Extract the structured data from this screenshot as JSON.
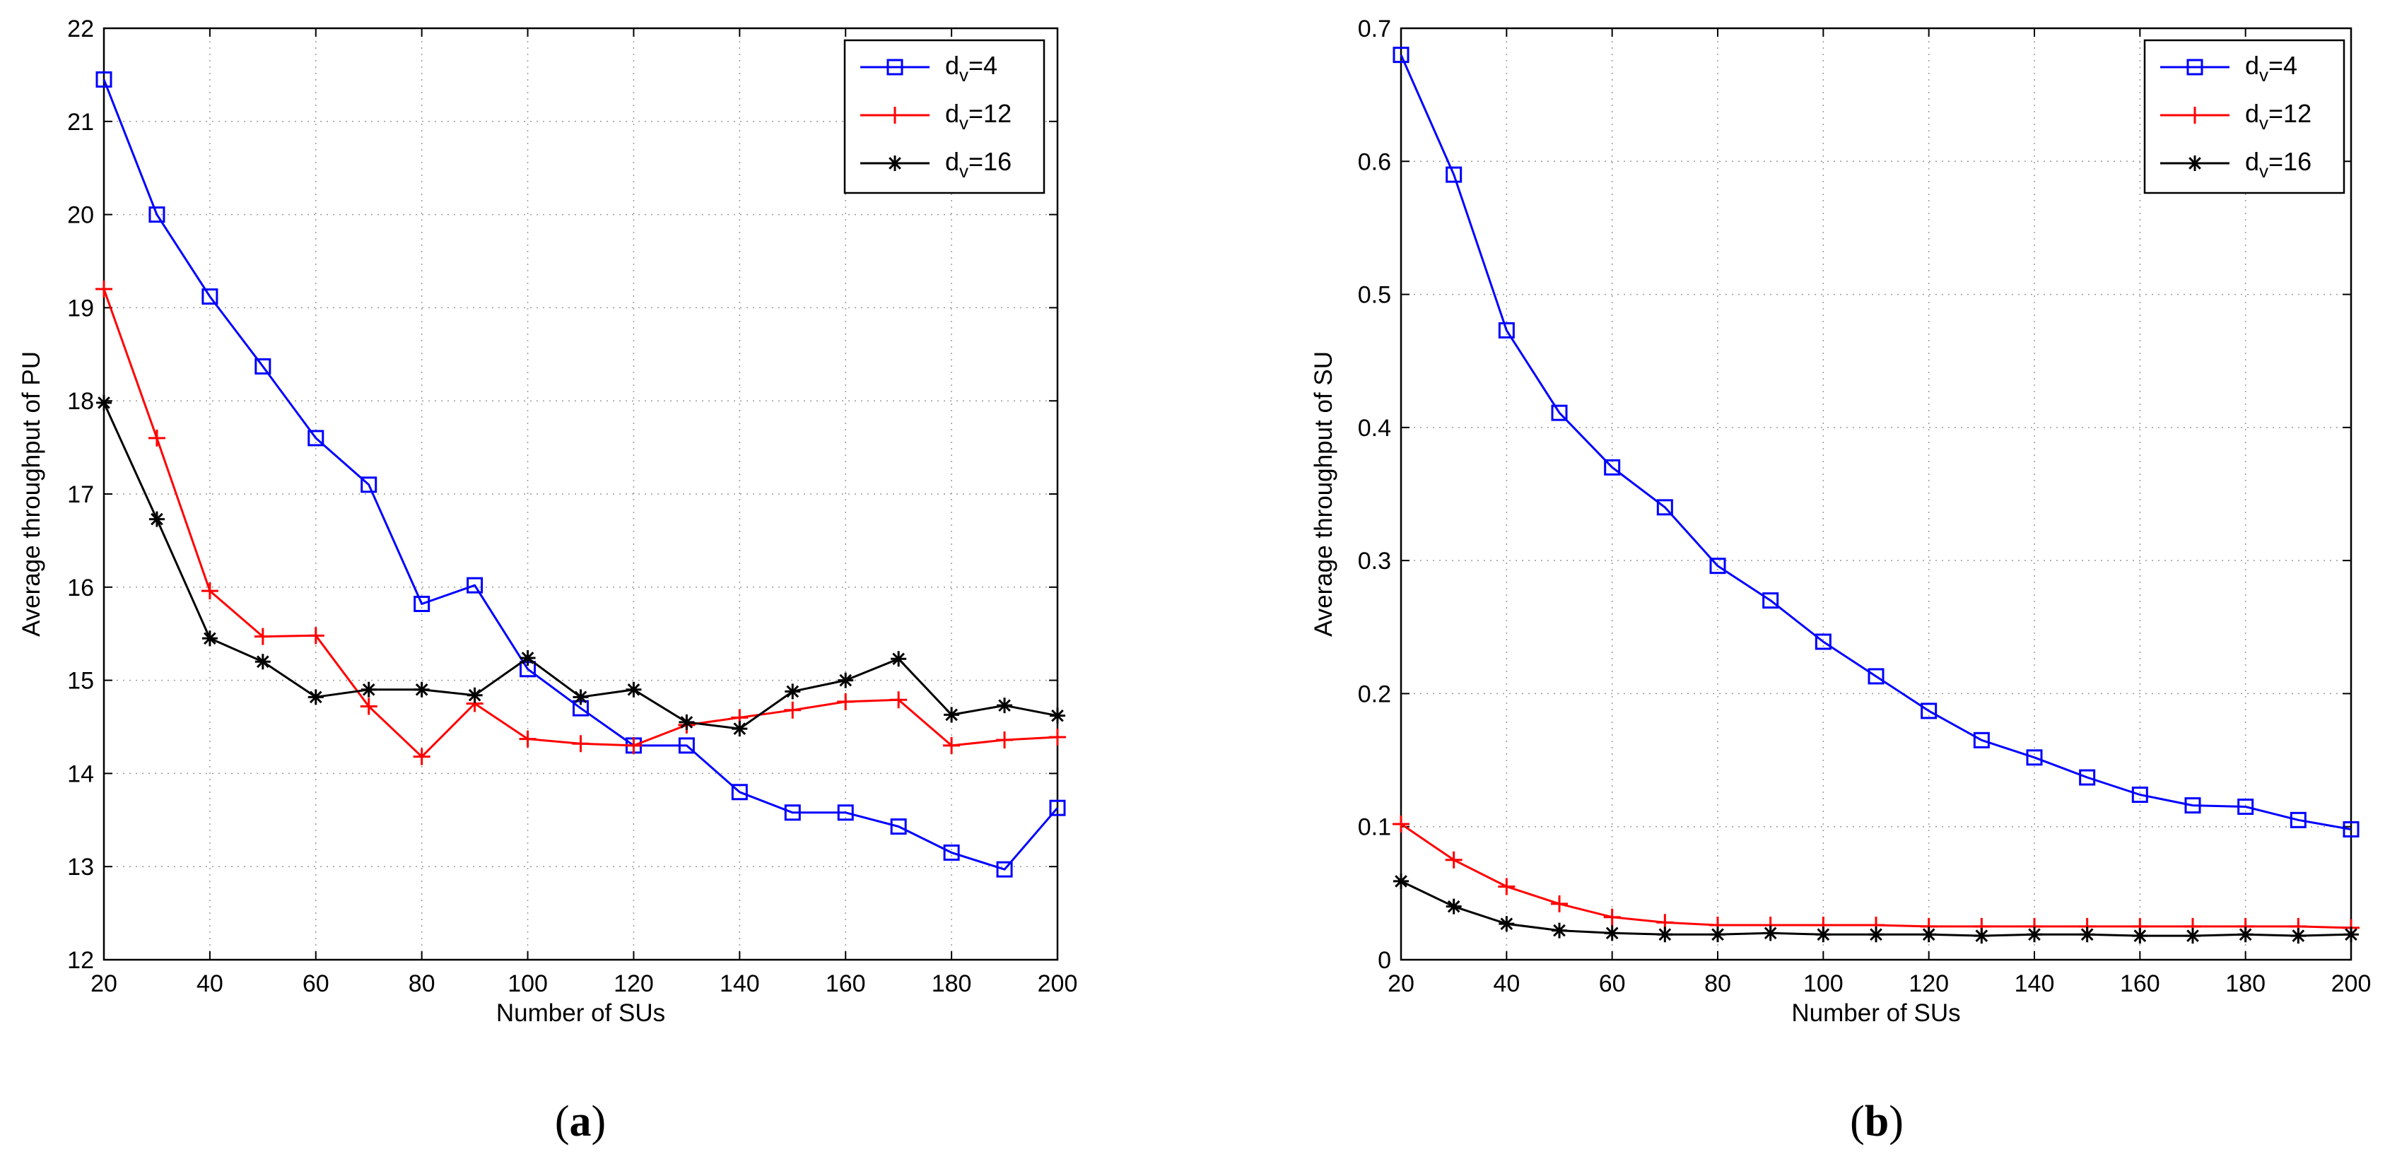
{
  "chart_data": [
    {
      "type": "line",
      "panel": "a",
      "caption": {
        "open": "(",
        "letter": "a",
        "close": ")"
      },
      "xlabel": "Number of SUs",
      "ylabel": "Average throughput of PU",
      "xlim": [
        20,
        200
      ],
      "ylim": [
        12,
        22
      ],
      "xticks": [
        20,
        40,
        60,
        80,
        100,
        120,
        140,
        160,
        180,
        200
      ],
      "yticks": [
        12,
        13,
        14,
        15,
        16,
        17,
        18,
        19,
        20,
        21,
        22
      ],
      "grid": true,
      "legend_position": "top-right",
      "x": [
        20,
        30,
        40,
        50,
        60,
        70,
        80,
        90,
        100,
        110,
        120,
        130,
        140,
        150,
        160,
        170,
        180,
        190,
        200
      ],
      "series": [
        {
          "name": "d_v=4",
          "label_base": "d",
          "label_sub": "v",
          "label_rest": "=4",
          "color": "#0000ff",
          "marker": "square",
          "values": [
            21.45,
            20.0,
            19.12,
            18.37,
            17.6,
            17.1,
            15.82,
            16.02,
            15.12,
            14.7,
            14.3,
            14.3,
            13.8,
            13.58,
            13.58,
            13.43,
            13.15,
            12.97,
            13.63
          ]
        },
        {
          "name": "d_v=12",
          "label_base": "d",
          "label_sub": "v",
          "label_rest": "=12",
          "color": "#ff0000",
          "marker": "plus",
          "values": [
            19.2,
            17.6,
            15.96,
            15.47,
            15.48,
            14.72,
            14.18,
            14.75,
            14.37,
            14.32,
            14.3,
            14.52,
            14.6,
            14.68,
            14.77,
            14.79,
            14.3,
            14.36,
            14.39
          ]
        },
        {
          "name": "d_v=16",
          "label_base": "d",
          "label_sub": "v",
          "label_rest": "=16",
          "color": "#000000",
          "marker": "star",
          "values": [
            17.98,
            16.73,
            15.45,
            15.2,
            14.82,
            14.9,
            14.9,
            14.84,
            15.24,
            14.82,
            14.9,
            14.55,
            14.48,
            14.88,
            15.0,
            15.23,
            14.63,
            14.73,
            14.62
          ]
        }
      ]
    },
    {
      "type": "line",
      "panel": "b",
      "caption": {
        "open": "(",
        "letter": "b",
        "close": ")"
      },
      "xlabel": "Number of SUs",
      "ylabel": "Average throughput of SU",
      "xlim": [
        20,
        200
      ],
      "ylim": [
        0,
        0.7
      ],
      "xticks": [
        20,
        40,
        60,
        80,
        100,
        120,
        140,
        160,
        180,
        200
      ],
      "yticks": [
        0,
        0.1,
        0.2,
        0.3,
        0.4,
        0.5,
        0.6,
        0.7
      ],
      "grid": true,
      "legend_position": "top-right",
      "x": [
        20,
        30,
        40,
        50,
        60,
        70,
        80,
        90,
        100,
        110,
        120,
        130,
        140,
        150,
        160,
        170,
        180,
        190,
        200
      ],
      "series": [
        {
          "name": "d_v=4",
          "label_base": "d",
          "label_sub": "v",
          "label_rest": "=4",
          "color": "#0000ff",
          "marker": "square",
          "values": [
            0.68,
            0.59,
            0.473,
            0.411,
            0.37,
            0.34,
            0.296,
            0.27,
            0.239,
            0.213,
            0.187,
            0.165,
            0.152,
            0.137,
            0.124,
            0.116,
            0.115,
            0.105,
            0.098
          ]
        },
        {
          "name": "d_v=12",
          "label_base": "d",
          "label_sub": "v",
          "label_rest": "=12",
          "color": "#ff0000",
          "marker": "plus",
          "values": [
            0.102,
            0.075,
            0.055,
            0.042,
            0.032,
            0.028,
            0.026,
            0.026,
            0.026,
            0.026,
            0.025,
            0.025,
            0.025,
            0.025,
            0.025,
            0.025,
            0.025,
            0.025,
            0.024
          ]
        },
        {
          "name": "d_v=16",
          "label_base": "d",
          "label_sub": "v",
          "label_rest": "=16",
          "color": "#000000",
          "marker": "star",
          "values": [
            0.059,
            0.04,
            0.027,
            0.022,
            0.02,
            0.019,
            0.019,
            0.02,
            0.019,
            0.019,
            0.019,
            0.018,
            0.019,
            0.019,
            0.018,
            0.018,
            0.019,
            0.018,
            0.019
          ]
        }
      ]
    }
  ]
}
